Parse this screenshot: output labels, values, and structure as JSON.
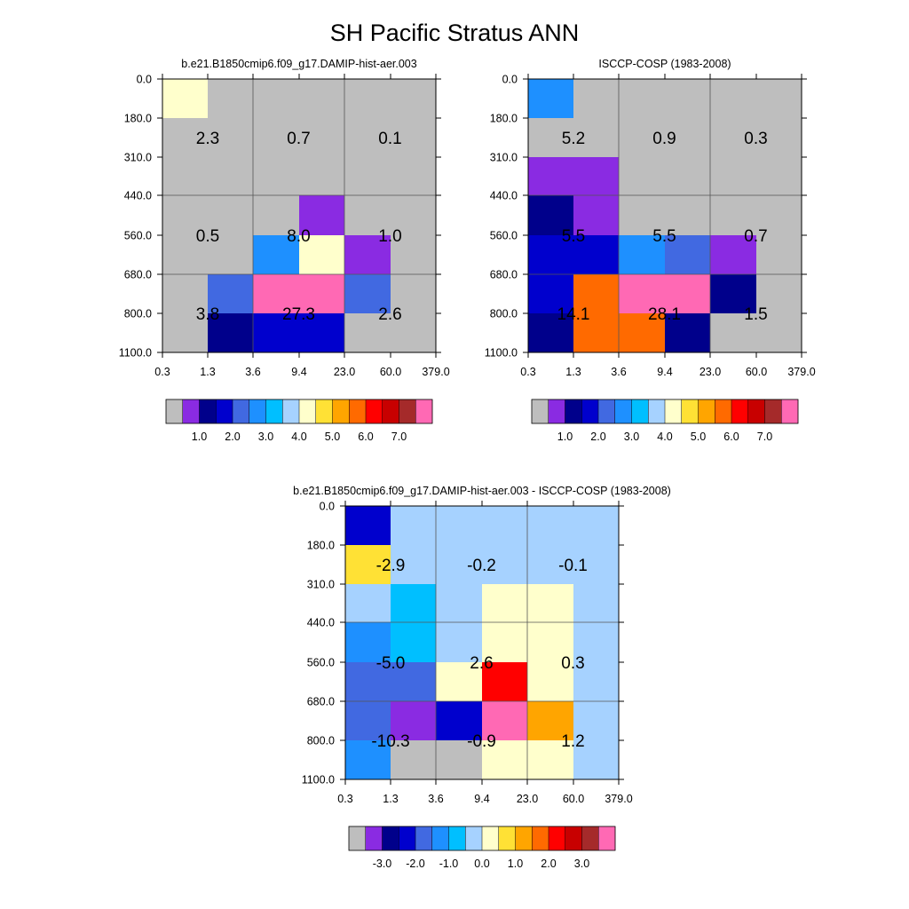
{
  "figure": {
    "title": "SH Pacific Stratus ANN"
  },
  "colors": {
    "model_obs_palette": [
      "#bebebe",
      "#8a2be2",
      "#00008b",
      "#0000cd",
      "#4169e1",
      "#1e90ff",
      "#00bfff",
      "#a6d2ff",
      "#ffffcc",
      "#ffe135",
      "#ffa500",
      "#ff6a00",
      "#ff0000",
      "#c80000",
      "#a52a2a",
      "#ff69b4"
    ],
    "diff_palette": [
      "#bebebe",
      "#8a2be2",
      "#00008b",
      "#0000cd",
      "#4169e1",
      "#1e90ff",
      "#00bfff",
      "#a6d2ff",
      "#ffffcc",
      "#ffe135",
      "#ffa500",
      "#ff6a00",
      "#ff0000",
      "#c80000",
      "#a52a2a",
      "#ff69b4"
    ],
    "hatch": "#000000"
  },
  "chart_data": [
    {
      "type": "heatmap",
      "panel": "model",
      "title": "b.e21.B1850cmip6.f09_g17.DAMIP-hist-aer.003",
      "x_ticks": [
        "0.3",
        "1.3",
        "3.6",
        "9.4",
        "23.0",
        "60.0",
        "379.0"
      ],
      "y_ticks": [
        "0.0",
        "180.0",
        "310.0",
        "440.0",
        "560.0",
        "680.0",
        "800.0",
        "1100.0"
      ],
      "cells": [
        [
          8,
          0,
          0,
          0,
          0,
          0
        ],
        [
          0,
          0,
          0,
          0,
          0,
          0
        ],
        [
          0,
          0,
          0,
          0,
          0,
          0
        ],
        [
          0,
          0,
          0,
          1,
          0,
          0
        ],
        [
          0,
          0,
          5,
          8,
          1,
          0
        ],
        [
          0,
          4,
          15,
          15,
          4,
          0
        ],
        [
          0,
          2,
          3,
          3,
          0,
          0
        ]
      ],
      "labels": [
        {
          "row": 1,
          "col": 0,
          "text": "2.3"
        },
        {
          "row": 1,
          "col": 1,
          "text": "0.7"
        },
        {
          "row": 1,
          "col": 2,
          "text": "0.1"
        },
        {
          "row": 4,
          "col": 0,
          "text": "0.5"
        },
        {
          "row": 4,
          "col": 1,
          "text": "8.0"
        },
        {
          "row": 4,
          "col": 2,
          "text": "1.0"
        },
        {
          "row": 6,
          "col": 0,
          "text": "3.8"
        },
        {
          "row": 6,
          "col": 1,
          "text": "27.3"
        },
        {
          "row": 6,
          "col": 2,
          "text": "2.6"
        }
      ],
      "colorbar": {
        "ticks": [
          "1.0",
          "2.0",
          "3.0",
          "4.0",
          "5.0",
          "6.0",
          "7.0"
        ]
      }
    },
    {
      "type": "heatmap",
      "panel": "obs",
      "title": "ISCCP-COSP (1983-2008)",
      "x_ticks": [
        "0.3",
        "1.3",
        "3.6",
        "9.4",
        "23.0",
        "60.0",
        "379.0"
      ],
      "y_ticks": [
        "0.0",
        "180.0",
        "310.0",
        "440.0",
        "560.0",
        "680.0",
        "800.0",
        "1100.0"
      ],
      "cells": [
        [
          5,
          0,
          0,
          0,
          0,
          0
        ],
        [
          0,
          0,
          0,
          0,
          0,
          0
        ],
        [
          1,
          1,
          0,
          0,
          0,
          0
        ],
        [
          2,
          1,
          0,
          0,
          0,
          0
        ],
        [
          3,
          3,
          5,
          4,
          1,
          0
        ],
        [
          3,
          11,
          15,
          15,
          2,
          0
        ],
        [
          2,
          11,
          11,
          2,
          0,
          0
        ]
      ],
      "labels": [
        {
          "row": 1,
          "col": 0,
          "text": "5.2"
        },
        {
          "row": 1,
          "col": 1,
          "text": "0.9"
        },
        {
          "row": 1,
          "col": 2,
          "text": "0.3"
        },
        {
          "row": 4,
          "col": 0,
          "text": "5.5"
        },
        {
          "row": 4,
          "col": 1,
          "text": "5.5"
        },
        {
          "row": 4,
          "col": 2,
          "text": "0.7"
        },
        {
          "row": 6,
          "col": 0,
          "text": "14.1"
        },
        {
          "row": 6,
          "col": 1,
          "text": "28.1"
        },
        {
          "row": 6,
          "col": 2,
          "text": "1.5"
        }
      ],
      "colorbar": {
        "ticks": [
          "1.0",
          "2.0",
          "3.0",
          "4.0",
          "5.0",
          "6.0",
          "7.0"
        ]
      }
    },
    {
      "type": "heatmap",
      "panel": "difference",
      "title": "b.e21.B1850cmip6.f09_g17.DAMIP-hist-aer.003 - ISCCP-COSP (1983-2008)",
      "x_ticks": [
        "0.3",
        "1.3",
        "3.6",
        "9.4",
        "23.0",
        "60.0",
        "379.0"
      ],
      "y_ticks": [
        "0.0",
        "180.0",
        "310.0",
        "440.0",
        "560.0",
        "680.0",
        "800.0",
        "1100.0"
      ],
      "cells": [
        [
          3,
          7,
          7,
          7,
          7,
          7
        ],
        [
          9,
          7,
          7,
          7,
          7,
          7
        ],
        [
          7,
          6,
          7,
          8,
          8,
          7
        ],
        [
          5,
          6,
          7,
          8,
          8,
          7
        ],
        [
          4,
          4,
          8,
          12,
          8,
          7
        ],
        [
          4,
          1,
          3,
          15,
          10,
          7
        ],
        [
          5,
          0,
          0,
          8,
          8,
          7
        ]
      ],
      "labels": [
        {
          "row": 1,
          "col": 0,
          "text": "-2.9"
        },
        {
          "row": 1,
          "col": 1,
          "text": "-0.2"
        },
        {
          "row": 1,
          "col": 2,
          "text": "-0.1"
        },
        {
          "row": 4,
          "col": 0,
          "text": "-5.0"
        },
        {
          "row": 4,
          "col": 1,
          "text": "2.6"
        },
        {
          "row": 4,
          "col": 2,
          "text": "0.3"
        },
        {
          "row": 6,
          "col": 0,
          "text": "-10.3"
        },
        {
          "row": 6,
          "col": 1,
          "text": "-0.9"
        },
        {
          "row": 6,
          "col": 2,
          "text": "1.2"
        }
      ],
      "colorbar": {
        "ticks": [
          "-3.0",
          "-2.0",
          "-1.0",
          "0.0",
          "1.0",
          "2.0",
          "3.0"
        ]
      }
    }
  ]
}
